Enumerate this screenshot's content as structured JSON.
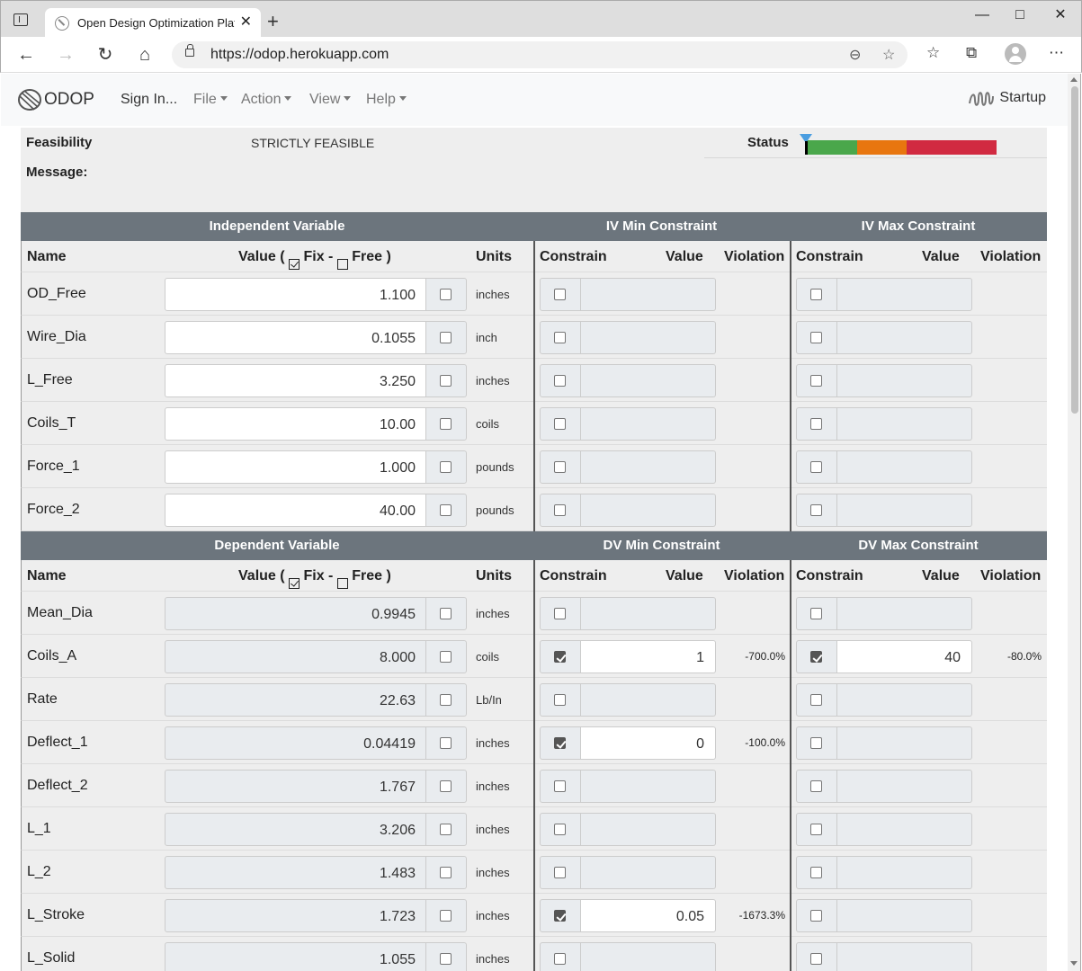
{
  "browser": {
    "tab_title": "Open Design Optimization Platform",
    "tab_close": "✕",
    "new_tab": "+",
    "url": "https://odop.herokuapp.com",
    "icons": [
      "back-icon",
      "forward-icon",
      "reload-icon",
      "home-icon",
      "lock-icon",
      "zoom-out-icon",
      "add-favorite-icon",
      "favorites-icon",
      "collections-icon",
      "profile-icon",
      "more-icon"
    ]
  },
  "navbar": {
    "brand": "ODOP",
    "sign_in": "Sign In...",
    "menus": [
      "File",
      "Action",
      "View",
      "Help"
    ],
    "startup": "Startup"
  },
  "status": {
    "feasibility_label": "Feasibility",
    "feasibility_value": "STRICTLY FEASIBLE",
    "status_label": "Status",
    "message_label": "Message:",
    "message_value": "",
    "colors": {
      "green": "#4aa74b",
      "orange": "#e8760f",
      "red": "#d12a41",
      "marker": "#4a9de0"
    }
  },
  "iv_table": {
    "group_headers": {
      "variable": "Independent Variable",
      "min": "IV Min Constraint",
      "max": "IV Max Constraint"
    },
    "columns": {
      "name": "Name",
      "value_prefix": "Value (",
      "fix": "Fix -",
      "free": "Free )",
      "units": "Units",
      "constrain": "Constrain",
      "value": "Value",
      "violation": "Violation"
    },
    "rows": [
      {
        "name": "OD_Free",
        "value": "1.100",
        "units": "inches",
        "fixed": false,
        "min_on": false,
        "min_value": "",
        "min_viol": "",
        "max_on": false,
        "max_value": "",
        "max_viol": ""
      },
      {
        "name": "Wire_Dia",
        "value": "0.1055",
        "units": "inch",
        "fixed": false,
        "min_on": false,
        "min_value": "",
        "min_viol": "",
        "max_on": false,
        "max_value": "",
        "max_viol": ""
      },
      {
        "name": "L_Free",
        "value": "3.250",
        "units": "inches",
        "fixed": false,
        "min_on": false,
        "min_value": "",
        "min_viol": "",
        "max_on": false,
        "max_value": "",
        "max_viol": ""
      },
      {
        "name": "Coils_T",
        "value": "10.00",
        "units": "coils",
        "fixed": false,
        "min_on": false,
        "min_value": "",
        "min_viol": "",
        "max_on": false,
        "max_value": "",
        "max_viol": ""
      },
      {
        "name": "Force_1",
        "value": "1.000",
        "units": "pounds",
        "fixed": false,
        "min_on": false,
        "min_value": "",
        "min_viol": "",
        "max_on": false,
        "max_value": "",
        "max_viol": ""
      },
      {
        "name": "Force_2",
        "value": "40.00",
        "units": "pounds",
        "fixed": false,
        "min_on": false,
        "min_value": "",
        "min_viol": "",
        "max_on": false,
        "max_value": "",
        "max_viol": ""
      }
    ]
  },
  "dv_table": {
    "group_headers": {
      "variable": "Dependent Variable",
      "min": "DV Min Constraint",
      "max": "DV Max Constraint"
    },
    "columns": {
      "name": "Name",
      "value_prefix": "Value (",
      "fix": "Fix -",
      "free": "Free )",
      "units": "Units",
      "constrain": "Constrain",
      "value": "Value",
      "violation": "Violation"
    },
    "rows": [
      {
        "name": "Mean_Dia",
        "value": "0.9945",
        "units": "inches",
        "fixed": false,
        "min_on": false,
        "min_value": "",
        "min_viol": "",
        "max_on": false,
        "max_value": "",
        "max_viol": ""
      },
      {
        "name": "Coils_A",
        "value": "8.000",
        "units": "coils",
        "fixed": false,
        "min_on": true,
        "min_value": "1",
        "min_viol": "-700.0%",
        "max_on": true,
        "max_value": "40",
        "max_viol": "-80.0%"
      },
      {
        "name": "Rate",
        "value": "22.63",
        "units": "Lb/In",
        "fixed": false,
        "min_on": false,
        "min_value": "",
        "min_viol": "",
        "max_on": false,
        "max_value": "",
        "max_viol": ""
      },
      {
        "name": "Deflect_1",
        "value": "0.04419",
        "units": "inches",
        "fixed": false,
        "min_on": true,
        "min_value": "0",
        "min_viol": "-100.0%",
        "max_on": false,
        "max_value": "",
        "max_viol": ""
      },
      {
        "name": "Deflect_2",
        "value": "1.767",
        "units": "inches",
        "fixed": false,
        "min_on": false,
        "min_value": "",
        "min_viol": "",
        "max_on": false,
        "max_value": "",
        "max_viol": ""
      },
      {
        "name": "L_1",
        "value": "3.206",
        "units": "inches",
        "fixed": false,
        "min_on": false,
        "min_value": "",
        "min_viol": "",
        "max_on": false,
        "max_value": "",
        "max_viol": ""
      },
      {
        "name": "L_2",
        "value": "1.483",
        "units": "inches",
        "fixed": false,
        "min_on": false,
        "min_value": "",
        "min_viol": "",
        "max_on": false,
        "max_value": "",
        "max_viol": ""
      },
      {
        "name": "L_Stroke",
        "value": "1.723",
        "units": "inches",
        "fixed": false,
        "min_on": true,
        "min_value": "0.05",
        "min_viol": "-1673.3%",
        "max_on": false,
        "max_value": "",
        "max_viol": ""
      },
      {
        "name": "L_Solid",
        "value": "1.055",
        "units": "inches",
        "fixed": false,
        "min_on": false,
        "min_value": "",
        "min_viol": "",
        "max_on": false,
        "max_value": "",
        "max_viol": ""
      }
    ]
  }
}
